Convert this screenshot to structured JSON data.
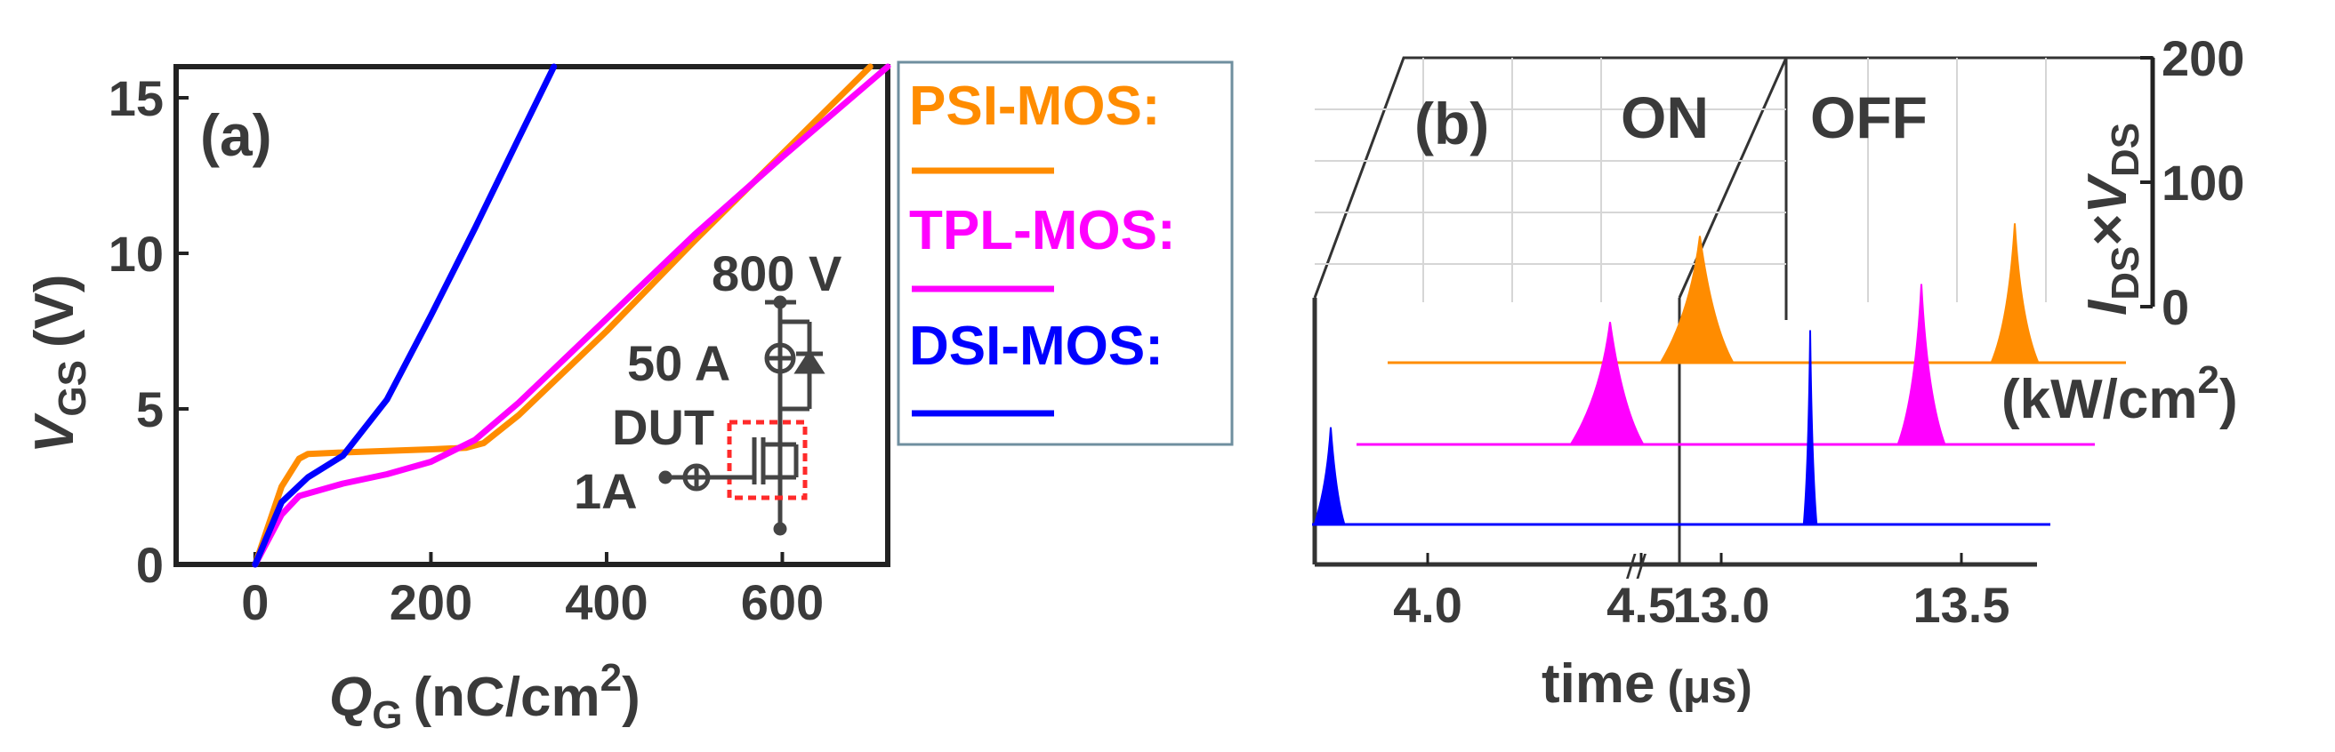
{
  "chart_data": [
    {
      "type": "line",
      "panel_label": "(a)",
      "xlabel_main": "Q",
      "xlabel_sub": "G",
      "xlabel_unit": "(nC/cm",
      "xlabel_sup": "2",
      "xlabel_close": ")",
      "ylabel_main": "V",
      "ylabel_sub": "GS",
      "ylabel_unit": "(V)",
      "xlim": [
        -90,
        720
      ],
      "ylim": [
        0,
        16
      ],
      "xticks": [
        0,
        200,
        400,
        600
      ],
      "yticks": [
        0,
        5,
        10,
        15
      ],
      "xtick_labels": [
        "0",
        "200",
        "400",
        "600"
      ],
      "ytick_labels": [
        "0",
        "5",
        "10",
        "15"
      ],
      "series": [
        {
          "name": "PSI-MOS:",
          "color": "#FF8C00",
          "x": [
            0,
            30,
            50,
            60,
            100,
            150,
            200,
            240,
            260,
            300,
            400,
            500,
            600,
            700
          ],
          "y": [
            0,
            2.5,
            3.4,
            3.55,
            3.6,
            3.65,
            3.7,
            3.75,
            3.9,
            4.8,
            7.5,
            10.4,
            13.2,
            16
          ]
        },
        {
          "name": "TPL-MOS:",
          "color": "#FF00FF",
          "x": [
            0,
            30,
            50,
            100,
            150,
            200,
            250,
            300,
            400,
            500,
            600,
            720
          ],
          "y": [
            0,
            1.6,
            2.2,
            2.6,
            2.9,
            3.3,
            4.0,
            5.2,
            7.9,
            10.6,
            13.1,
            16
          ]
        },
        {
          "name": "DSI-MOS:",
          "color": "#0000FF",
          "x": [
            0,
            30,
            60,
            100,
            150,
            200,
            250,
            300,
            340
          ],
          "y": [
            0,
            2.0,
            2.8,
            3.5,
            5.3,
            8.0,
            10.8,
            13.7,
            16
          ]
        }
      ],
      "inset": {
        "voltage": "800 V",
        "current": "50 A",
        "dut": "DUT",
        "gate_current": "1A"
      }
    },
    {
      "type": "line",
      "panel_label": "(b)",
      "subtitle_left": "ON",
      "subtitle_right": "OFF",
      "xlabel": "time",
      "xlabel_unit": "(μs)",
      "xticks_left": [
        4.0,
        4.5
      ],
      "xticks_right": [
        13.0,
        13.5
      ],
      "xtick_labels": [
        "4.0",
        "4.5",
        "13.0",
        "13.5"
      ],
      "zlabel_main": "I",
      "zlabel_sub1": "DS",
      "zlabel_times": "×",
      "zlabel_main2": "V",
      "zlabel_sub2": "DS",
      "zlabel_unit": "(kW/cm",
      "zlabel_sup": "2",
      "zlabel_close": ")",
      "zticks": [
        0,
        100,
        200
      ],
      "ztick_labels": [
        "0",
        "100",
        "200"
      ],
      "series": [
        {
          "name": "PSI-MOS:",
          "color": "#FF8C00",
          "on_peak_time": 4.45,
          "on_peak": 150,
          "off_peak_time": 13.62,
          "off_peak": 165
        },
        {
          "name": "TPL-MOS:",
          "color": "#FF00FF",
          "on_peak_time": 4.5,
          "on_peak": 145,
          "off_peak_time": 13.48,
          "off_peak": 190
        },
        {
          "name": "DSI-MOS:",
          "color": "#0000FF",
          "on_peak_time": 3.95,
          "on_peak": 115,
          "off_peak_time": 13.33,
          "off_peak": 230
        }
      ]
    }
  ]
}
